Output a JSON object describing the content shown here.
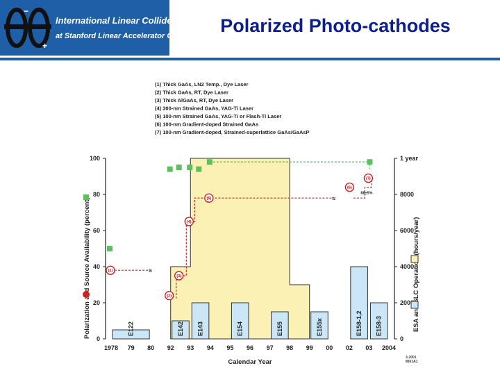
{
  "header": {
    "logo_line1": "International Linear Collider",
    "logo_line2": "at Stanford Linear Accelerator Center",
    "title": "Polarized Photo-cathodes"
  },
  "footer": {
    "code1": "3-2001",
    "code2": "8651A1"
  },
  "chart_data": {
    "type": "bar",
    "xlabel": "Calendar Year",
    "ylabel_left": [
      "Polarization",
      "and Source Availability",
      "(percent)"
    ],
    "ylabel_right": [
      "ESA",
      "and SLC",
      "Operation",
      "(hours/year)"
    ],
    "x_ticks": [
      "1978",
      "79",
      "80",
      "92",
      "93",
      "94",
      "95",
      "96",
      "97",
      "98",
      "99",
      "00",
      "02",
      "03",
      "2004"
    ],
    "y_left_ticks": [
      0,
      20,
      40,
      60,
      80,
      100
    ],
    "y_right_ticks": [
      "0",
      "2000",
      "4000",
      "6000",
      "8000",
      "1 year"
    ],
    "ylim_left": [
      0,
      100
    ],
    "ylim_right": [
      0,
      10000
    ],
    "legend": [
      "(1) Thick GaAs, LN2 Temp., Dye Laser",
      "(2) Thick GaAs, RT, Dye Laser",
      "(3) Thick AlGaAs, RT, Dye Laser",
      "(4) 300-nm Strained GaAs, YAG-Ti Laser",
      "(5) 100-nm Strained GaAs, YAG-Ti or Flash-Ti Laser",
      "(6) 100-nm Gradient-doped Strained GaAs",
      "(7) 100-nm Gradient-doped, Strained-superlattice GaAs/GaAsP"
    ],
    "slc_operation_hours": [
      {
        "x": "92",
        "hours": 4000
      },
      {
        "x": "93",
        "hours": 10000
      },
      {
        "x": "94",
        "hours": 10000
      },
      {
        "x": "95",
        "hours": 10000
      },
      {
        "x": "96",
        "hours": 10000
      },
      {
        "x": "97",
        "hours": 10000
      },
      {
        "x": "98",
        "hours": 3000
      }
    ],
    "esa_experiments": [
      {
        "name": "E122",
        "from": "1978",
        "to": "80",
        "hours": 500
      },
      {
        "name": "E142",
        "from": "92",
        "to": "93",
        "hours": 1000
      },
      {
        "name": "E143",
        "from": "93",
        "to": "94",
        "hours": 2000
      },
      {
        "name": "E154",
        "from": "95",
        "to": "96",
        "hours": 2000
      },
      {
        "name": "E155",
        "from": "97",
        "to": "98",
        "hours": 1500
      },
      {
        "name": "E155x",
        "from": "99",
        "to": "00",
        "hours": 1500
      },
      {
        "name": "E158-1,2",
        "from": "02",
        "to": "03",
        "hours": 4000
      },
      {
        "name": "E158-3",
        "from": "03",
        "to": "2004",
        "hours": 2000
      }
    ],
    "polarization": [
      {
        "label": "(1)",
        "x": "1978",
        "y": 38
      },
      {
        "label": "(2)",
        "x": "92",
        "y": 24
      },
      {
        "label": "(3)",
        "x": "92",
        "y": 35
      },
      {
        "label": "(4)",
        "x": "93",
        "y": 65
      },
      {
        "label": "(5)",
        "x": "94",
        "y": 78
      },
      {
        "label": "(6)",
        "x": "2004",
        "y": 84
      },
      {
        "label": "(7)",
        "x": "2004",
        "y": 89
      }
    ],
    "annotation": "88±5%",
    "availability": [
      {
        "x": "1978",
        "y": 50
      },
      {
        "x": "92",
        "y": 94
      },
      {
        "x": "93",
        "y": 95
      },
      {
        "x": "93",
        "y": 95
      },
      {
        "x": "94",
        "y": 94
      },
      {
        "x": "94",
        "y": 98
      },
      {
        "x": "2004",
        "y": 98
      }
    ],
    "colors": {
      "slc": "#fbf1b4",
      "esa": "#cbe7f7",
      "polarization": "#d42020",
      "availability": "#5cc05c",
      "bar_edge": "#333333"
    }
  }
}
